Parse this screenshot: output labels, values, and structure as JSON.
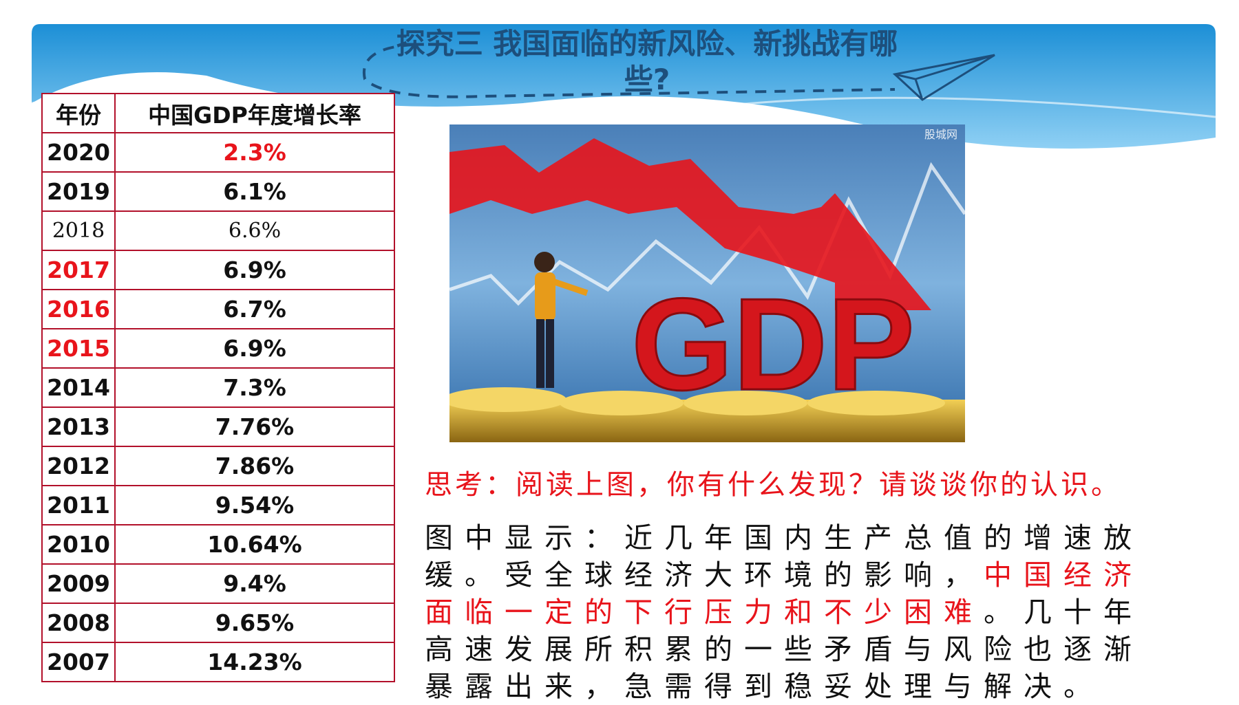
{
  "header": {
    "title": "探究三 我国面临的新风险、新挑战有哪些?"
  },
  "table": {
    "columns": [
      "年份",
      "中国GDP年度增长率"
    ],
    "rows": [
      [
        "2020",
        "2.3%"
      ],
      [
        "2019",
        "6.1%"
      ],
      [
        "2018",
        "6.6%"
      ],
      [
        "2017",
        "6.9%"
      ],
      [
        "2016",
        "6.7%"
      ],
      [
        "2015",
        "6.9%"
      ],
      [
        "2014",
        "7.3%"
      ],
      [
        "2013",
        "7.76%"
      ],
      [
        "2012",
        "7.86%"
      ],
      [
        "2011",
        "9.54%"
      ],
      [
        "2010",
        "10.64%"
      ],
      [
        "2009",
        "9.4%"
      ],
      [
        "2008",
        "9.65%"
      ],
      [
        "2007",
        "14.23%"
      ]
    ]
  },
  "image": {
    "label": "GDP",
    "watermark": "股城网"
  },
  "question": "思考：阅读上图，你有什么发现？请谈谈你的认识。",
  "answer": {
    "parts": [
      "图中显示：近几年国内生产总值的增速放缓。受全球经济大环境的影响，",
      "中国经济面临一定的下行压力和不少困难",
      "。几十年高速发展所积累的一些矛盾与风险也逐渐暴露出来，急需得到稳妥处理与解决。"
    ]
  }
}
